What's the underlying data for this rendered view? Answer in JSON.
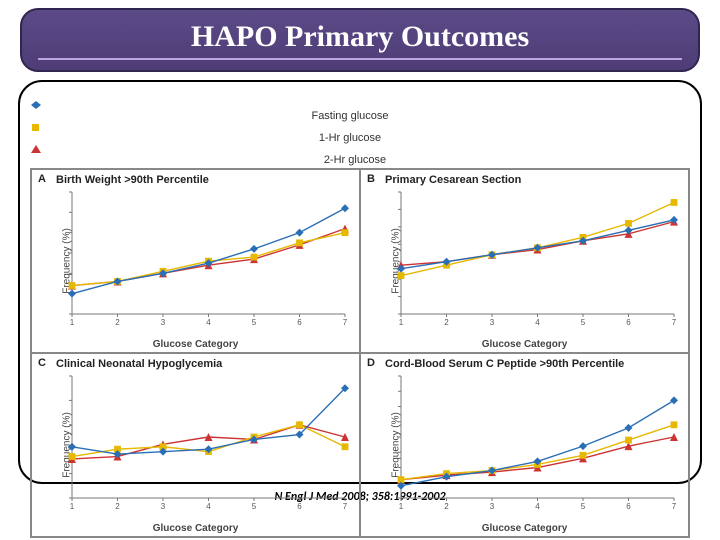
{
  "title": "HAPO Primary Outcomes",
  "citation": "N Engl J Med 2008; 358:1991-2002",
  "legend": [
    {
      "label": "Fasting glucose",
      "color": "#2a6fb5",
      "marker": "diamond"
    },
    {
      "label": "1-Hr glucose",
      "color": "#e6b800",
      "marker": "square"
    },
    {
      "label": "2-Hr glucose",
      "color": "#cc3333",
      "marker": "triangle"
    }
  ],
  "axis": {
    "xlabel": "Glucose Category",
    "ylabel": "Frequency (%)",
    "xcats": [
      1,
      2,
      3,
      4,
      5,
      6,
      7
    ],
    "label_fontsize": 10
  },
  "panels": {
    "A": {
      "letter": "A",
      "title": "Birth Weight >90th Percentile",
      "ylim": [
        0,
        30
      ],
      "ytick_step": 5,
      "series": {
        "fasting": [
          5,
          8,
          10,
          12.5,
          16,
          20,
          26
        ],
        "one_hr": [
          7,
          8,
          10.5,
          13,
          14,
          17.5,
          20
        ],
        "two_hr": [
          7,
          8,
          10,
          12,
          13.5,
          17,
          21
        ]
      }
    },
    "B": {
      "letter": "B",
      "title": "Primary Cesarean Section",
      "ylim": [
        0,
        35
      ],
      "ytick_step": 5,
      "series": {
        "fasting": [
          13,
          15,
          17,
          19,
          21,
          24,
          27
        ],
        "one_hr": [
          11,
          14,
          17,
          19,
          22,
          26,
          32
        ],
        "two_hr": [
          14,
          15,
          17,
          18.5,
          21,
          23,
          26.5
        ]
      }
    },
    "C": {
      "letter": "C",
      "title": "Clinical Neonatal Hypoglycemia",
      "ylim": [
        0,
        5
      ],
      "ytick_step": 1,
      "series": {
        "fasting": [
          2.1,
          1.8,
          1.9,
          2.0,
          2.4,
          2.6,
          4.5
        ],
        "one_hr": [
          1.7,
          2.0,
          2.1,
          1.9,
          2.5,
          3.0,
          2.1
        ],
        "two_hr": [
          1.6,
          1.7,
          2.2,
          2.5,
          2.4,
          3.0,
          2.5
        ]
      }
    },
    "D": {
      "letter": "D",
      "title": "Cord-Blood Serum C Peptide >90th Percentile",
      "ylim": [
        0,
        40
      ],
      "ytick_step": 5,
      "series": {
        "fasting": [
          4,
          7,
          9,
          12,
          17,
          23,
          32
        ],
        "one_hr": [
          6,
          8,
          9,
          11,
          14,
          19,
          24
        ],
        "two_hr": [
          6,
          7.5,
          8.5,
          10,
          13,
          17,
          20
        ]
      }
    }
  },
  "colors": {
    "fasting": "#2a6fb5",
    "one_hr": "#e6b800",
    "two_hr": "#cc3333",
    "axis": "#777777",
    "tick": "#777777",
    "title_box_bg_top": "#5b4a87",
    "title_box_bg_bot": "#4e3c76",
    "title_box_border": "#2f2650",
    "title_rule": "#bda6e0",
    "frame_border": "#000000"
  },
  "styling": {
    "line_width": 1.4,
    "marker_size": 4,
    "title_fontsize": 30,
    "panel_title_fontsize": 11,
    "citation_fontsize": 12
  }
}
